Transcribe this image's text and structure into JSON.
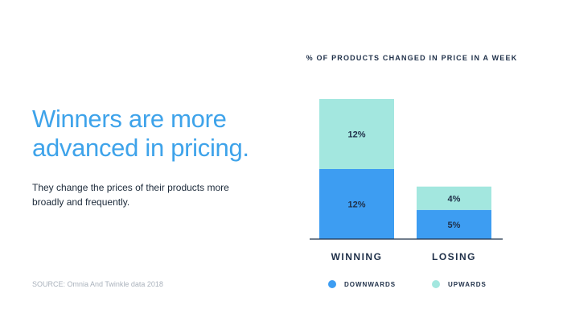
{
  "headline": {
    "line1": "Winners are more",
    "line2": "advanced in pricing."
  },
  "subtext": {
    "line1": "They change the prices of their products more",
    "line2": "broadly and frequently."
  },
  "source": "SOURCE: Omnia And Twinkle data 2018",
  "colors": {
    "headline": "#3ea3ea",
    "downwards": "#3d9df2",
    "upwards": "#a3e7df",
    "text_dark": "#1f3049",
    "axis": "#1f3049"
  },
  "chart_data": {
    "type": "bar",
    "stacked": true,
    "title": "% OF PRODUCTS CHANGED IN PRICE IN A WEEK",
    "categories": [
      "WINNING",
      "LOSING"
    ],
    "series": [
      {
        "name": "DOWNWARDS",
        "values": [
          12,
          5
        ],
        "labels": [
          "12%",
          "5%"
        ]
      },
      {
        "name": "UPWARDS",
        "values": [
          12,
          4
        ],
        "labels": [
          "12%",
          "4%"
        ]
      }
    ],
    "ylim": [
      0,
      24
    ],
    "grid": false,
    "legend_position": "bottom"
  }
}
